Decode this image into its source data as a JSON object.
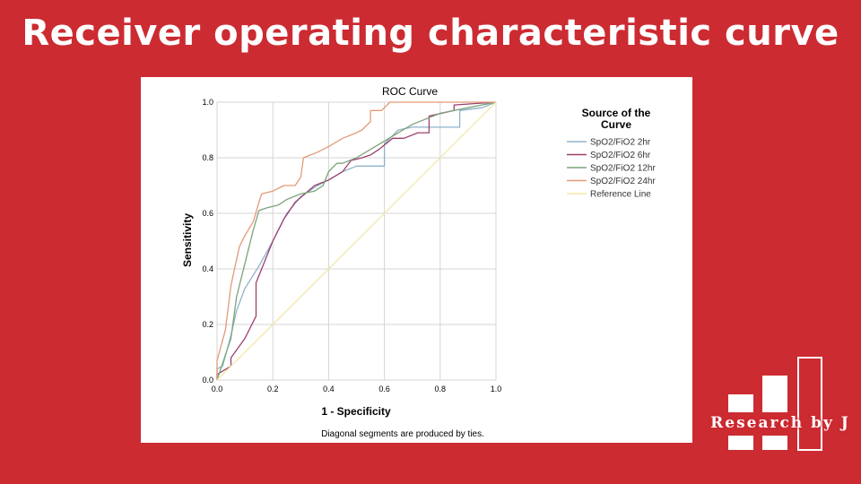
{
  "slide": {
    "title": "Receiver operating characteristic curve"
  },
  "logo": {
    "text": "Research by J",
    "icon": "bar-blocks-logo"
  },
  "colors": {
    "background": "#cc2b32",
    "panel": "#ffffff"
  },
  "chart_data": {
    "type": "line",
    "title": "ROC Curve",
    "xlabel": "1 - Specificity",
    "ylabel": "Sensitivity",
    "xlim": [
      0,
      1
    ],
    "ylim": [
      0,
      1
    ],
    "xticks": [
      "0.0",
      "0.2",
      "0.4",
      "0.6",
      "0.8",
      "1.0"
    ],
    "yticks": [
      "0.0",
      "0.2",
      "0.4",
      "0.6",
      "0.8",
      "1.0"
    ],
    "grid": true,
    "legend_title": "Source of the Curve",
    "legend_position": "right",
    "footnote": "Diagonal segments are produced by ties.",
    "series": [
      {
        "name": "SpO2/FiO2  2hr",
        "color": "#8fb2cc",
        "points": [
          [
            0,
            0
          ],
          [
            0,
            0.04
          ],
          [
            0.02,
            0.05
          ],
          [
            0.05,
            0.16
          ],
          [
            0.07,
            0.25
          ],
          [
            0.1,
            0.33
          ],
          [
            0.15,
            0.41
          ],
          [
            0.2,
            0.5
          ],
          [
            0.25,
            0.6
          ],
          [
            0.3,
            0.66
          ],
          [
            0.36,
            0.7
          ],
          [
            0.4,
            0.72
          ],
          [
            0.45,
            0.75
          ],
          [
            0.5,
            0.77
          ],
          [
            0.55,
            0.77
          ],
          [
            0.6,
            0.77
          ],
          [
            0.6,
            0.85
          ],
          [
            0.65,
            0.9
          ],
          [
            0.7,
            0.91
          ],
          [
            0.8,
            0.91
          ],
          [
            0.87,
            0.91
          ],
          [
            0.87,
            0.97
          ],
          [
            0.95,
            0.98
          ],
          [
            1,
            1
          ]
        ]
      },
      {
        "name": "SpO2/FiO2 6hr",
        "color": "#9c3f6f",
        "points": [
          [
            0,
            0
          ],
          [
            0,
            0.02
          ],
          [
            0.05,
            0.05
          ],
          [
            0.05,
            0.08
          ],
          [
            0.1,
            0.15
          ],
          [
            0.14,
            0.23
          ],
          [
            0.14,
            0.35
          ],
          [
            0.2,
            0.5
          ],
          [
            0.24,
            0.58
          ],
          [
            0.28,
            0.64
          ],
          [
            0.35,
            0.7
          ],
          [
            0.4,
            0.72
          ],
          [
            0.45,
            0.75
          ],
          [
            0.48,
            0.79
          ],
          [
            0.52,
            0.8
          ],
          [
            0.55,
            0.81
          ],
          [
            0.58,
            0.83
          ],
          [
            0.63,
            0.87
          ],
          [
            0.67,
            0.87
          ],
          [
            0.72,
            0.89
          ],
          [
            0.76,
            0.89
          ],
          [
            0.76,
            0.95
          ],
          [
            0.85,
            0.97
          ],
          [
            0.85,
            0.99
          ],
          [
            1,
            1
          ]
        ]
      },
      {
        "name": "SpO2/FiO2 12hr",
        "color": "#7ba37a",
        "points": [
          [
            0,
            0
          ],
          [
            0.05,
            0.15
          ],
          [
            0.07,
            0.3
          ],
          [
            0.1,
            0.42
          ],
          [
            0.13,
            0.54
          ],
          [
            0.15,
            0.61
          ],
          [
            0.18,
            0.62
          ],
          [
            0.22,
            0.63
          ],
          [
            0.25,
            0.65
          ],
          [
            0.3,
            0.67
          ],
          [
            0.35,
            0.68
          ],
          [
            0.38,
            0.7
          ],
          [
            0.4,
            0.75
          ],
          [
            0.43,
            0.78
          ],
          [
            0.45,
            0.78
          ],
          [
            0.5,
            0.8
          ],
          [
            0.55,
            0.83
          ],
          [
            0.6,
            0.86
          ],
          [
            0.65,
            0.89
          ],
          [
            0.7,
            0.92
          ],
          [
            0.8,
            0.96
          ],
          [
            0.85,
            0.97
          ],
          [
            0.9,
            0.98
          ],
          [
            1,
            1
          ]
        ]
      },
      {
        "name": "SpO2/FiO2 24hr",
        "color": "#e39a78",
        "points": [
          [
            0,
            0
          ],
          [
            0,
            0.07
          ],
          [
            0.03,
            0.18
          ],
          [
            0.05,
            0.34
          ],
          [
            0.08,
            0.48
          ],
          [
            0.1,
            0.52
          ],
          [
            0.13,
            0.57
          ],
          [
            0.15,
            0.64
          ],
          [
            0.16,
            0.67
          ],
          [
            0.2,
            0.68
          ],
          [
            0.24,
            0.7
          ],
          [
            0.28,
            0.7
          ],
          [
            0.3,
            0.73
          ],
          [
            0.31,
            0.8
          ],
          [
            0.36,
            0.82
          ],
          [
            0.4,
            0.84
          ],
          [
            0.45,
            0.87
          ],
          [
            0.5,
            0.89
          ],
          [
            0.52,
            0.9
          ],
          [
            0.55,
            0.93
          ],
          [
            0.55,
            0.97
          ],
          [
            0.59,
            0.97
          ],
          [
            0.62,
            1
          ],
          [
            0.7,
            1
          ],
          [
            0.85,
            1
          ],
          [
            1,
            1
          ]
        ]
      },
      {
        "name": "Reference Line",
        "color": "#f4e8a6",
        "points": [
          [
            0,
            0
          ],
          [
            1,
            1
          ]
        ]
      }
    ]
  }
}
